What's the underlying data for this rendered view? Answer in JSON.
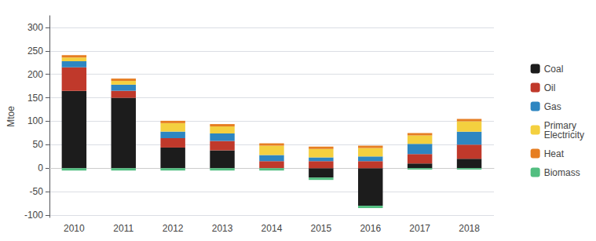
{
  "chart_data": {
    "type": "bar",
    "stacked": true,
    "categories": [
      "2010",
      "2011",
      "2012",
      "2013",
      "2014",
      "2015",
      "2016",
      "2017",
      "2018"
    ],
    "series": [
      {
        "name": "Coal",
        "color": "#1c1c1c",
        "values": [
          165,
          150,
          44,
          38,
          0,
          -20,
          -80,
          10,
          20
        ]
      },
      {
        "name": "Oil",
        "color": "#c0392b",
        "values": [
          50,
          15,
          20,
          20,
          15,
          15,
          15,
          20,
          30
        ]
      },
      {
        "name": "Gas",
        "color": "#2e86c1",
        "values": [
          13,
          13,
          14,
          16,
          13,
          8,
          10,
          22,
          28
        ]
      },
      {
        "name": "Primary\nElectricity",
        "color": "#f4d03f",
        "values": [
          8,
          8,
          18,
          15,
          20,
          18,
          18,
          18,
          22
        ]
      },
      {
        "name": "Heat",
        "color": "#e67e22",
        "values": [
          5,
          5,
          5,
          5,
          5,
          5,
          5,
          5,
          5
        ]
      },
      {
        "name": "Biomass",
        "color": "#52be80",
        "values": [
          -5,
          -5,
          -5,
          -5,
          -5,
          -5,
          -5,
          -3,
          -3
        ]
      }
    ],
    "ylabel": "Mtoe",
    "ylim": [
      -105,
      325
    ],
    "yticks": [
      -100,
      -50,
      0,
      50,
      100,
      150,
      200,
      250,
      300
    ],
    "grid": true,
    "legend": "right"
  }
}
